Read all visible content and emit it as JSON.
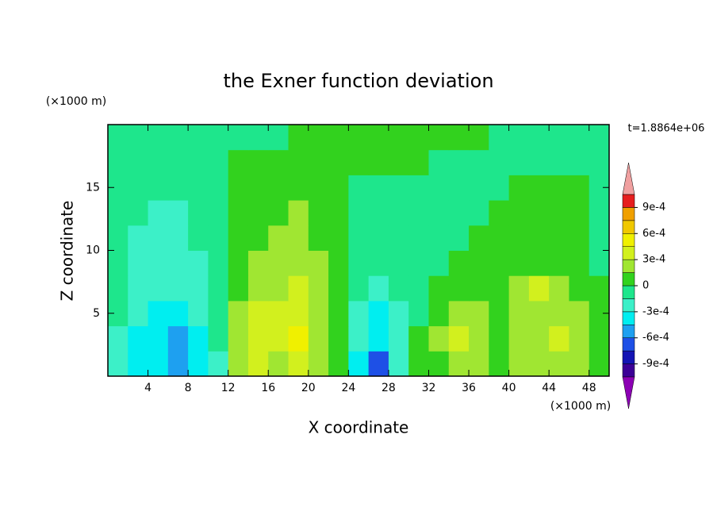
{
  "chart_data": {
    "type": "contour",
    "title": "the Exner function deviation",
    "x_label": "X coordinate",
    "y_label": "Z coordinate",
    "x_unit": "(×1000 m)",
    "y_unit": "(×1000 m)",
    "time_label": "t=1.8864e+06",
    "xlim": [
      0,
      50
    ],
    "ylim": [
      0,
      20
    ],
    "xticks": [
      4,
      8,
      12,
      16,
      20,
      24,
      28,
      32,
      36,
      40,
      44,
      48
    ],
    "yticks": [
      5,
      10,
      15
    ],
    "x": [
      1,
      3,
      5,
      7,
      9,
      11,
      13,
      15,
      17,
      19,
      21,
      23,
      25,
      27,
      29,
      31,
      33,
      35,
      37,
      39,
      41,
      43,
      45,
      47,
      49
    ],
    "y": [
      1,
      3,
      5,
      7,
      9,
      11,
      13,
      15,
      17,
      19
    ],
    "z": [
      [
        -0.0002,
        -0.0004,
        -0.0004,
        -0.0005,
        -0.0004,
        -0.0002,
        0.0002,
        0.0004,
        0.0002,
        0.0004,
        0.0002,
        7e-05,
        -0.0004,
        -0.0007,
        -0.0002,
        7e-05,
        7e-05,
        0.0002,
        0.0002,
        7e-05,
        0.0002,
        0.0002,
        0.0002,
        0.0002,
        7e-05
      ],
      [
        -0.0002,
        -0.0004,
        -0.0004,
        -0.0005,
        -0.0004,
        -7e-05,
        0.0002,
        0.0004,
        0.0004,
        0.0005,
        0.0002,
        7e-05,
        -0.0002,
        -0.0004,
        -0.0002,
        7e-05,
        0.0002,
        0.0004,
        0.0002,
        7e-05,
        0.0002,
        0.0002,
        0.0004,
        0.0002,
        7e-05
      ],
      [
        -0.0001,
        -0.0002,
        -0.0004,
        -0.0004,
        -0.0002,
        -7e-05,
        0.0002,
        0.0004,
        0.0004,
        0.0004,
        0.0002,
        7e-05,
        -0.0002,
        -0.0004,
        -0.0002,
        -7e-05,
        7e-05,
        0.0002,
        0.0002,
        7e-05,
        0.0002,
        0.0002,
        0.0002,
        0.0002,
        7e-05
      ],
      [
        -0.0001,
        -0.0002,
        -0.0002,
        -0.0002,
        -0.0002,
        -7e-05,
        7e-05,
        0.0002,
        0.0002,
        0.0004,
        0.0002,
        7e-05,
        -7e-05,
        -0.0002,
        -7e-05,
        -7e-05,
        7e-05,
        7e-05,
        7e-05,
        7e-05,
        0.0002,
        0.0004,
        0.0002,
        7e-05,
        7e-05
      ],
      [
        -0.0001,
        -0.0002,
        -0.0002,
        -0.0002,
        -0.0002,
        -7e-05,
        7e-05,
        0.0002,
        0.0002,
        0.0002,
        0.0002,
        7e-05,
        -7e-05,
        -7e-05,
        -7e-05,
        -7e-05,
        -7e-05,
        7e-05,
        7e-05,
        7e-05,
        7e-05,
        7e-05,
        7e-05,
        7e-05,
        -7e-05
      ],
      [
        -0.0001,
        -0.0002,
        -0.0002,
        -0.0002,
        -7e-05,
        -7e-05,
        7e-05,
        7e-05,
        0.0002,
        0.0002,
        7e-05,
        7e-05,
        -7e-05,
        -7e-05,
        -7e-05,
        -7e-05,
        -7e-05,
        -7e-05,
        7e-05,
        7e-05,
        7e-05,
        7e-05,
        7e-05,
        7e-05,
        -7e-05
      ],
      [
        -0.0001,
        -7e-05,
        -0.0002,
        -0.0002,
        -7e-05,
        -7e-05,
        7e-05,
        7e-05,
        7e-05,
        0.0002,
        7e-05,
        7e-05,
        -7e-05,
        -7e-05,
        -7e-05,
        -7e-05,
        -7e-05,
        -7e-05,
        -7e-05,
        7e-05,
        7e-05,
        7e-05,
        7e-05,
        7e-05,
        -7e-05
      ],
      [
        -0.0001,
        -7e-05,
        -7e-05,
        -7e-05,
        -7e-05,
        -7e-05,
        7e-05,
        7e-05,
        7e-05,
        7e-05,
        7e-05,
        7e-05,
        -7e-05,
        -7e-05,
        -7e-05,
        -7e-05,
        -7e-05,
        -7e-05,
        -7e-05,
        -7e-05,
        7e-05,
        7e-05,
        7e-05,
        7e-05,
        -7e-05
      ],
      [
        -0.0001,
        -7e-05,
        -7e-05,
        -7e-05,
        -7e-05,
        -7e-05,
        7e-05,
        7e-05,
        7e-05,
        7e-05,
        7e-05,
        7e-05,
        7e-05,
        7e-05,
        7e-05,
        7e-05,
        -7e-05,
        -7e-05,
        -7e-05,
        -7e-05,
        -7e-05,
        -7e-05,
        -7e-05,
        -7e-05,
        -7e-05
      ],
      [
        -0.0001,
        -7e-05,
        -7e-05,
        -7e-05,
        -7e-05,
        -7e-05,
        -7e-05,
        -7e-05,
        -7e-05,
        7e-05,
        7e-05,
        7e-05,
        7e-05,
        7e-05,
        7e-05,
        7e-05,
        7e-05,
        7e-05,
        7e-05,
        -7e-05,
        -7e-05,
        -7e-05,
        -7e-05,
        -7e-05,
        -7e-05
      ]
    ],
    "levels": [
      -0.00105,
      -0.0009,
      -0.00075,
      -0.0006,
      -0.00045,
      -0.0003,
      -0.00015,
      0,
      0.00015,
      0.0003,
      0.00045,
      0.0006,
      0.00075,
      0.0009,
      0.00105
    ],
    "colors": [
      "#8c00b4",
      "#3c0096",
      "#1414b4",
      "#1e50e6",
      "#1ea0f0",
      "#00eef0",
      "#3cf0c8",
      "#1ee68c",
      "#32d21e",
      "#a0e632",
      "#d2f01e",
      "#f0f000",
      "#f0c800",
      "#f0a000",
      "#e61e1e",
      "#f0a0a0"
    ],
    "colorbar_ticks": [
      {
        "value": 0.0009,
        "label": "9e-4"
      },
      {
        "value": 0.0006,
        "label": "6e-4"
      },
      {
        "value": 0.0003,
        "label": "3e-4"
      },
      0,
      {
        "value": -0.0003,
        "label": "-3e-4"
      },
      {
        "value": -0.0006,
        "label": "-6e-4"
      },
      {
        "value": -0.0009,
        "label": "-9e-4"
      }
    ]
  }
}
